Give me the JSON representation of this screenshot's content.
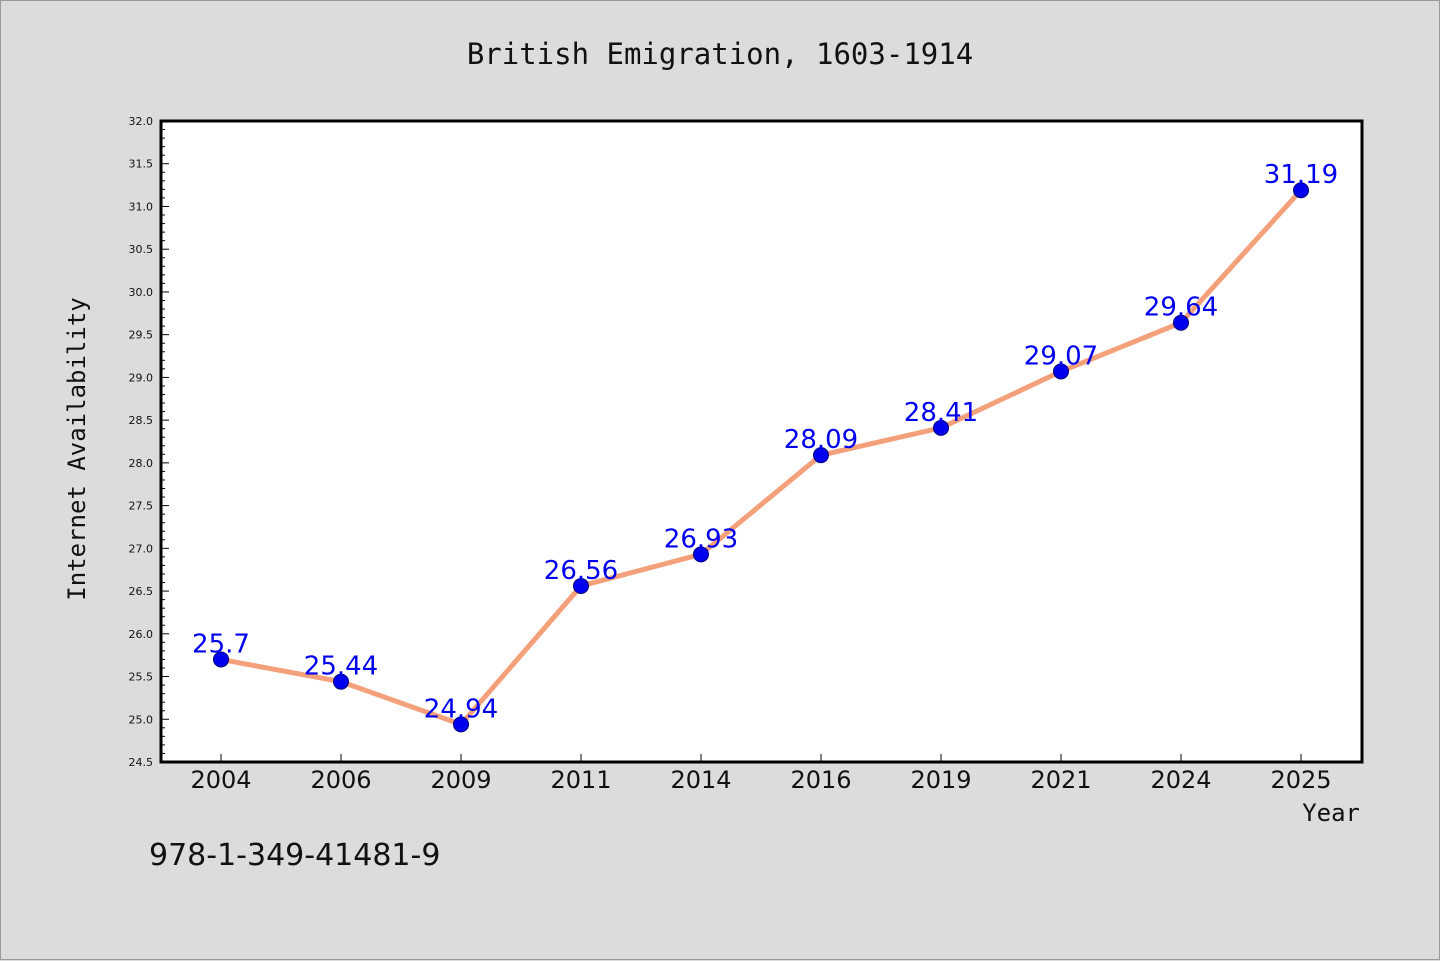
{
  "chart_data": {
    "type": "line",
    "title": "British Emigration, 1603-1914",
    "xlabel": "Year",
    "ylabel": "Internet Availability",
    "categories": [
      "2004",
      "2006",
      "2009",
      "2011",
      "2014",
      "2016",
      "2019",
      "2021",
      "2024",
      "2025"
    ],
    "series": [
      {
        "values": [
          25.7,
          25.44,
          24.94,
          26.56,
          26.93,
          28.09,
          28.41,
          29.07,
          29.64,
          31.19
        ],
        "data_labels": [
          "25.7",
          "25.44",
          "24.94",
          "26.56",
          "26.93",
          "28.09",
          "28.41",
          "29.07",
          "29.64",
          "31.19"
        ]
      }
    ],
    "ylim": [
      24.5,
      32.0
    ],
    "yticks": [
      "24.5",
      "25.0",
      "25.5",
      "26.0",
      "26.5",
      "27.0",
      "27.5",
      "28.0",
      "28.5",
      "29.0",
      "29.5",
      "30.0",
      "30.5",
      "31.0",
      "31.5",
      "32.0"
    ],
    "grid": false,
    "legend": "none",
    "line_color": "#f4a07a",
    "marker_color": "#0000ee",
    "label_color": "#0000ee",
    "plot_background": "#ffffff",
    "figure_background": "#dcdcdc"
  },
  "footnote": "978-1-349-41481-9"
}
